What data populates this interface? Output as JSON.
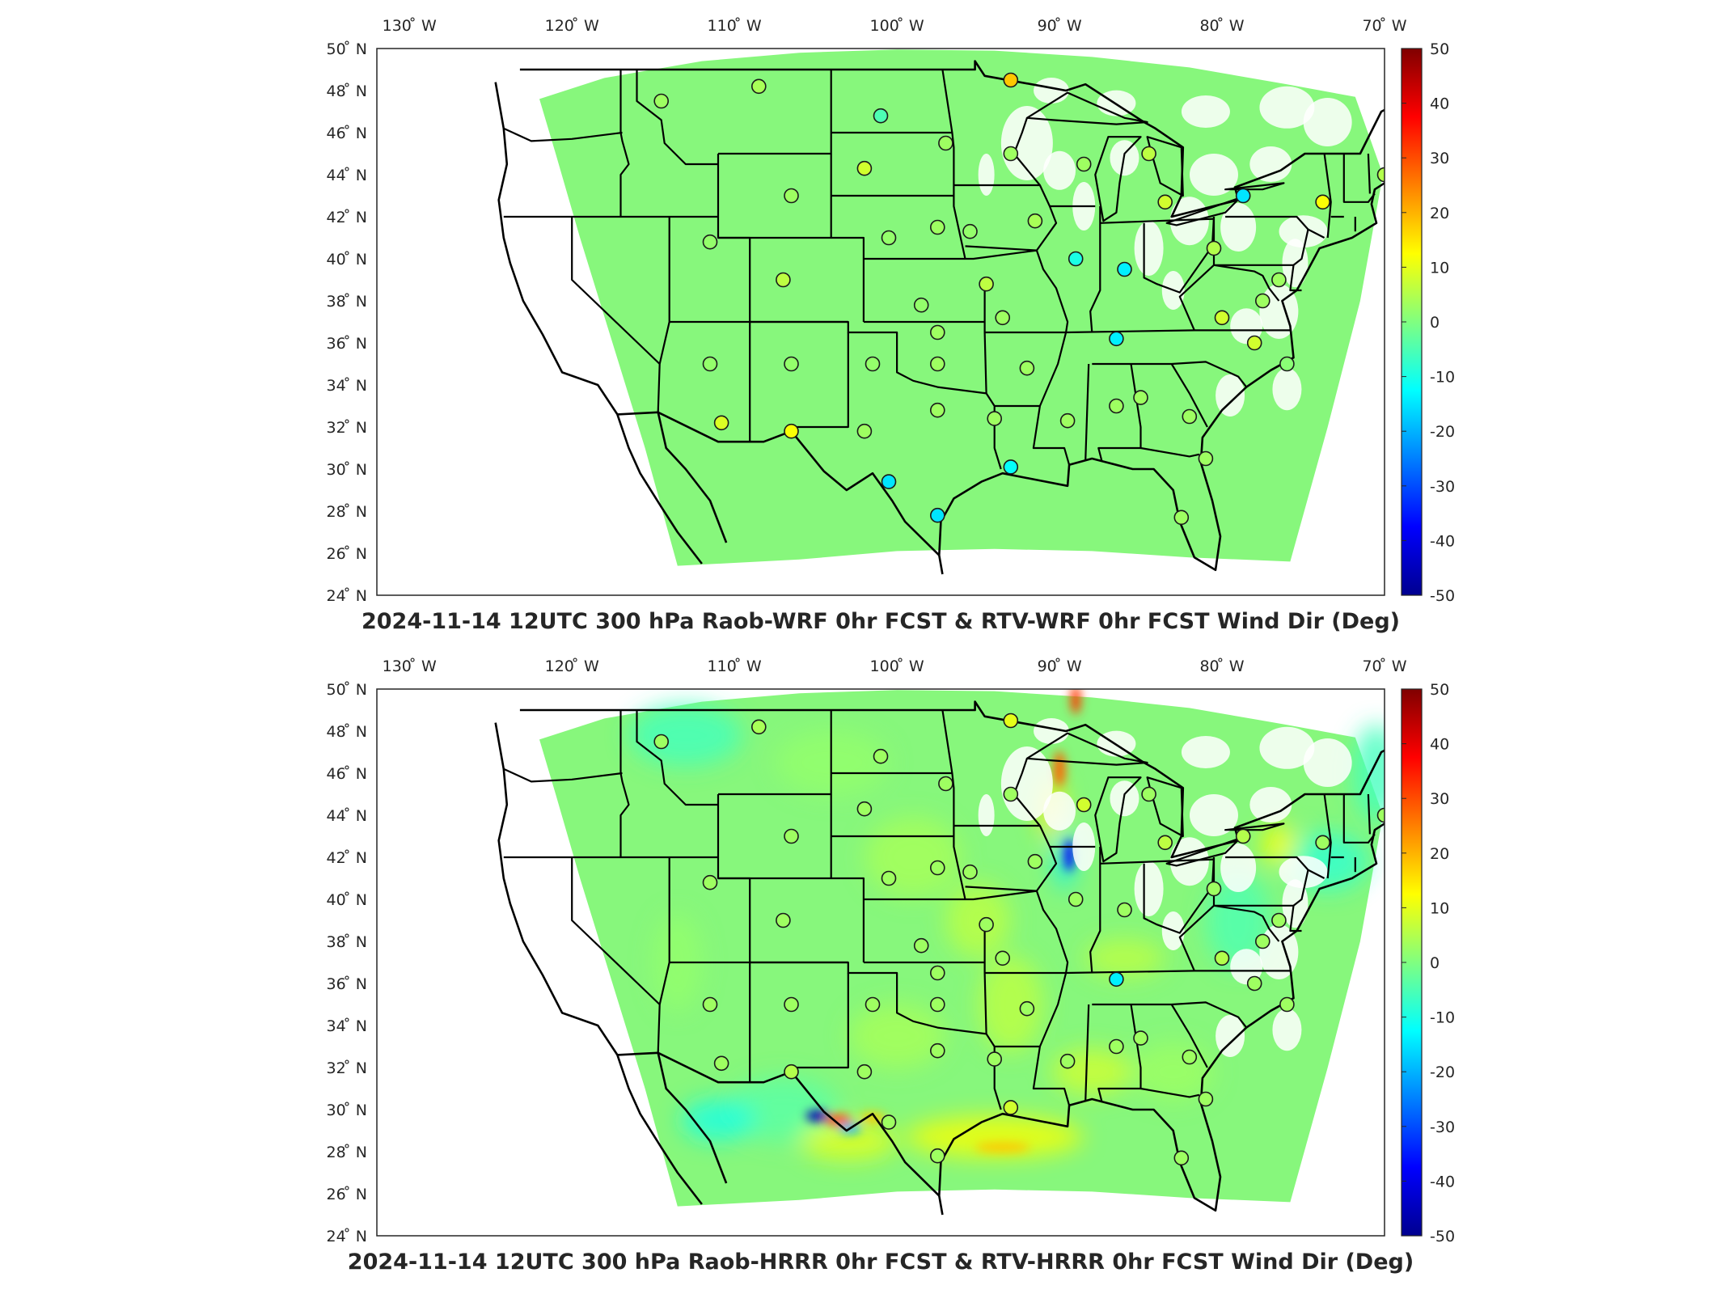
{
  "panels": [
    {
      "title": "2024-11-14 12UTC 300 hPa Raob-WRF 0hr FCST & RTV-WRF 0hr FCST Wind Dir (Deg)",
      "field": "uniform",
      "stations": [
        [
          -114.5,
          47.5,
          3
        ],
        [
          -108.5,
          48.2,
          4
        ],
        [
          -101.0,
          46.8,
          -5
        ],
        [
          -97.0,
          45.5,
          3
        ],
        [
          -93.0,
          48.5,
          18
        ],
        [
          -93.0,
          45.0,
          3
        ],
        [
          -88.5,
          44.5,
          3
        ],
        [
          -84.5,
          45.0,
          6
        ],
        [
          -83.5,
          42.7,
          8
        ],
        [
          -78.7,
          43.0,
          -15
        ],
        [
          -73.8,
          42.7,
          12
        ],
        [
          -70.0,
          44.0,
          5
        ],
        [
          -106.5,
          43.0,
          3
        ],
        [
          -102.0,
          44.3,
          8
        ],
        [
          -97.5,
          41.5,
          3
        ],
        [
          -100.5,
          41.0,
          2
        ],
        [
          -95.5,
          41.3,
          2
        ],
        [
          -91.5,
          41.8,
          4
        ],
        [
          -89.0,
          40.0,
          -10
        ],
        [
          -86.0,
          39.5,
          -14
        ],
        [
          -80.5,
          40.5,
          5
        ],
        [
          -76.5,
          39.0,
          3
        ],
        [
          -77.5,
          38.0,
          3
        ],
        [
          -111.5,
          40.8,
          2
        ],
        [
          -107.0,
          39.0,
          6
        ],
        [
          -98.5,
          37.8,
          2
        ],
        [
          -94.5,
          38.8,
          6
        ],
        [
          -97.5,
          36.5,
          3
        ],
        [
          -93.5,
          37.2,
          3
        ],
        [
          -86.5,
          36.2,
          -14
        ],
        [
          -80.0,
          37.2,
          8
        ],
        [
          -78.0,
          36.0,
          8
        ],
        [
          -76.0,
          35.0,
          1
        ],
        [
          -111.5,
          35.0,
          2
        ],
        [
          -106.5,
          35.0,
          2
        ],
        [
          -101.5,
          35.0,
          2
        ],
        [
          -97.5,
          35.0,
          3
        ],
        [
          -92.0,
          34.8,
          3
        ],
        [
          -89.5,
          32.3,
          3
        ],
        [
          -86.5,
          33.0,
          3
        ],
        [
          -85.0,
          33.4,
          3
        ],
        [
          -82.0,
          32.5,
          3
        ],
        [
          -81.0,
          30.5,
          3
        ],
        [
          -110.8,
          32.2,
          9
        ],
        [
          -106.5,
          31.8,
          12
        ],
        [
          -102.0,
          31.8,
          3
        ],
        [
          -97.5,
          32.8,
          3
        ],
        [
          -94.0,
          32.4,
          3
        ],
        [
          -100.5,
          29.4,
          -15
        ],
        [
          -97.5,
          27.8,
          -15
        ],
        [
          -93.0,
          30.1,
          -12
        ],
        [
          -82.5,
          27.7,
          3
        ]
      ]
    },
    {
      "title": "2024-11-14 12UTC 300 hPa Raob-HRRR 0hr FCST & RTV-HRRR 0hr FCST Wind Dir (Deg)",
      "field": "variable",
      "stations": [
        [
          -114.5,
          47.5,
          3
        ],
        [
          -108.5,
          48.2,
          4
        ],
        [
          -101.0,
          46.8,
          3
        ],
        [
          -97.0,
          45.5,
          3
        ],
        [
          -93.0,
          48.5,
          10
        ],
        [
          -93.0,
          45.0,
          3
        ],
        [
          -88.5,
          44.5,
          8
        ],
        [
          -84.5,
          45.0,
          3
        ],
        [
          -83.5,
          42.7,
          6
        ],
        [
          -78.7,
          43.0,
          5
        ],
        [
          -73.8,
          42.7,
          3
        ],
        [
          -70.0,
          44.0,
          3
        ],
        [
          -106.5,
          43.0,
          3
        ],
        [
          -102.0,
          44.3,
          3
        ],
        [
          -97.5,
          41.5,
          3
        ],
        [
          -100.5,
          41.0,
          3
        ],
        [
          -95.5,
          41.3,
          3
        ],
        [
          -91.5,
          41.8,
          3
        ],
        [
          -89.0,
          40.0,
          3
        ],
        [
          -86.0,
          39.5,
          3
        ],
        [
          -80.5,
          40.5,
          3
        ],
        [
          -76.5,
          39.0,
          3
        ],
        [
          -77.5,
          38.0,
          3
        ],
        [
          -111.5,
          40.8,
          3
        ],
        [
          -107.0,
          39.0,
          3
        ],
        [
          -98.5,
          37.8,
          3
        ],
        [
          -94.5,
          38.8,
          3
        ],
        [
          -97.5,
          36.5,
          3
        ],
        [
          -93.5,
          37.2,
          3
        ],
        [
          -86.5,
          36.2,
          -14
        ],
        [
          -80.0,
          37.2,
          5
        ],
        [
          -78.0,
          36.0,
          3
        ],
        [
          -76.0,
          35.0,
          3
        ],
        [
          -111.5,
          35.0,
          3
        ],
        [
          -106.5,
          35.0,
          3
        ],
        [
          -101.5,
          35.0,
          3
        ],
        [
          -97.5,
          35.0,
          3
        ],
        [
          -92.0,
          34.8,
          3
        ],
        [
          -89.5,
          32.3,
          3
        ],
        [
          -86.5,
          33.0,
          3
        ],
        [
          -85.0,
          33.4,
          3
        ],
        [
          -82.0,
          32.5,
          3
        ],
        [
          -81.0,
          30.5,
          3
        ],
        [
          -110.8,
          32.2,
          3
        ],
        [
          -106.5,
          31.8,
          5
        ],
        [
          -102.0,
          31.8,
          3
        ],
        [
          -97.5,
          32.8,
          3
        ],
        [
          -94.0,
          32.4,
          3
        ],
        [
          -100.5,
          29.4,
          3
        ],
        [
          -97.5,
          27.8,
          3
        ],
        [
          -93.0,
          30.1,
          8
        ],
        [
          -82.5,
          27.7,
          3
        ]
      ]
    }
  ],
  "lon_ticks": [
    "130 ̊ W",
    "120 ̊ W",
    "110 ̊ W",
    "100 ̊ W",
    "90 ̊ W",
    "80 ̊ W",
    "70 ̊ W"
  ],
  "lat_ticks": [
    "50 ̊ N",
    "48 ̊ N",
    "46 ̊ N",
    "44 ̊ N",
    "42 ̊ N",
    "40 ̊ N",
    "38 ̊ N",
    "36 ̊ N",
    "34 ̊ N",
    "32 ̊ N",
    "30 ̊ N",
    "28 ̊ N",
    "26 ̊ N",
    "24 ̊ N"
  ],
  "colorbar_ticks": [
    "50",
    "40",
    "30",
    "20",
    "10",
    "0",
    "-10",
    "-20",
    "-30",
    "-40",
    "-50"
  ],
  "colorbar_range": [
    -50,
    50
  ],
  "colormap": "jet"
}
